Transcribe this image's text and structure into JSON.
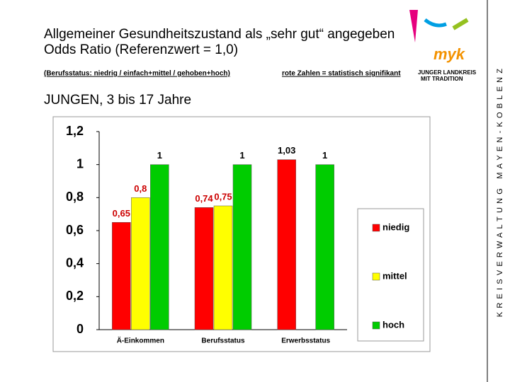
{
  "header": {
    "title_lines": [
      "Allgemeiner Gesundheitszustand als „sehr gut“ angegeben",
      "Odds Ratio (Referenzwert = 1,0)"
    ],
    "note_left": "(Berufsstatus: niedrig  /  einfach+mittel  /  gehoben+hoch)",
    "note_right": "rote Zahlen = statistisch signifikant",
    "group": "JUNGEN, 3 bis 17 Jahre"
  },
  "logo": {
    "mark": "myk",
    "lines": [
      "JUNGER LANDKREIS",
      "MIT TRADITION"
    ]
  },
  "sidebar": "KREISVERWALTUNG MAYEN-KOBLENZ",
  "chart_data": {
    "type": "bar",
    "categories": [
      "Ä-Einkommen",
      "Berufsstatus",
      "Erwerbsstatus"
    ],
    "series": [
      {
        "name": "niedig",
        "color": "#ff0000",
        "values": [
          0.65,
          0.74,
          1.03
        ],
        "value_labels": [
          "0,65",
          "0,74",
          "1,03"
        ],
        "label_colors": [
          "#cc0000",
          "#cc0000",
          "#000000"
        ]
      },
      {
        "name": "mittel",
        "color": "#ffff00",
        "values": [
          0.8,
          0.75,
          null
        ],
        "value_labels": [
          "0,8",
          "0,75",
          null
        ],
        "label_colors": [
          "#cc0000",
          "#cc0000",
          null
        ]
      },
      {
        "name": "hoch",
        "color": "#00cc00",
        "values": [
          1,
          1,
          1
        ],
        "value_labels": [
          "1",
          "1",
          "1"
        ],
        "label_colors": [
          "#000000",
          "#000000",
          "#000000"
        ]
      }
    ],
    "ylim": [
      0,
      1.2
    ],
    "yticks": [
      0,
      {
        "value": 0.2,
        "label": "0,2"
      },
      {
        "value": 0.4,
        "label": "0,4"
      },
      {
        "value": 0.6,
        "label": "0,6"
      },
      {
        "value": 0.8,
        "label": "0,8"
      },
      1,
      {
        "value": 1.2,
        "label": "1,2"
      }
    ],
    "legend": "right"
  }
}
